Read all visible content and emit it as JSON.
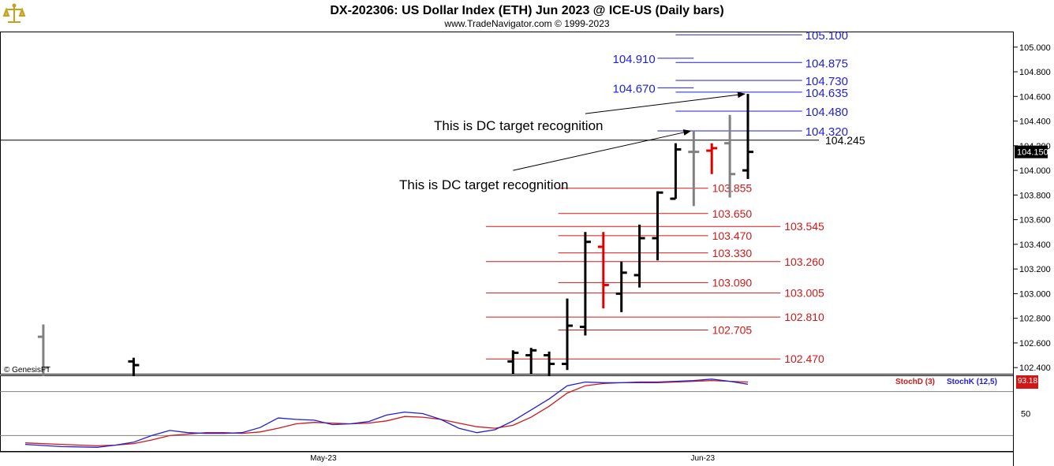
{
  "header": {
    "title": "DX-202306:  US Dollar Index (ETH) Jun 2023 @ ICE-US  (Daily bars)",
    "subtitle": "www.TradeNavigator.com © 1999-2023"
  },
  "watermark": "© GenesisFT",
  "colors": {
    "up": "#000000",
    "down": "#e00000",
    "neutral": "#808080",
    "blue": "#1f1fd6",
    "red": "#d01818"
  },
  "chart_data": {
    "type": "ohlc",
    "ylim": [
      102.35,
      105.12
    ],
    "yticks": [
      "105.000",
      "104.800",
      "104.600",
      "104.400",
      "104.200",
      "104.000",
      "103.800",
      "103.600",
      "103.400",
      "103.200",
      "103.000",
      "102.800",
      "102.600",
      "102.400"
    ],
    "x_labels": [
      {
        "label": "May-23",
        "x": 16.5
      },
      {
        "label": "Jun-23",
        "x": 37.5
      }
    ],
    "last_price": "104.150",
    "bars": [
      {
        "x": 1,
        "o": 102.65,
        "h": 102.75,
        "l": 102.33,
        "c": 102.4,
        "col": "neutral"
      },
      {
        "x": 6,
        "o": 102.45,
        "h": 102.48,
        "l": 102.33,
        "c": 102.42,
        "col": "up"
      },
      {
        "x": 27,
        "o": 102.45,
        "h": 102.54,
        "l": 102.35,
        "c": 102.52,
        "col": "up"
      },
      {
        "x": 28,
        "o": 102.5,
        "h": 102.56,
        "l": 102.35,
        "c": 102.54,
        "col": "up"
      },
      {
        "x": 29,
        "o": 102.5,
        "h": 102.53,
        "l": 102.33,
        "c": 102.43,
        "col": "up"
      },
      {
        "x": 30,
        "o": 102.43,
        "h": 102.96,
        "l": 102.38,
        "c": 102.74,
        "col": "up"
      },
      {
        "x": 31,
        "o": 102.73,
        "h": 103.5,
        "l": 102.66,
        "c": 103.42,
        "col": "up"
      },
      {
        "x": 32,
        "o": 103.38,
        "h": 103.5,
        "l": 102.88,
        "c": 103.07,
        "col": "down"
      },
      {
        "x": 33,
        "o": 103.0,
        "h": 103.26,
        "l": 102.85,
        "c": 103.17,
        "col": "up"
      },
      {
        "x": 34,
        "o": 103.15,
        "h": 103.56,
        "l": 103.05,
        "c": 103.45,
        "col": "up"
      },
      {
        "x": 35,
        "o": 103.45,
        "h": 103.83,
        "l": 103.27,
        "c": 103.82,
        "col": "up"
      },
      {
        "x": 36,
        "o": 103.77,
        "h": 104.22,
        "l": 103.77,
        "c": 104.17,
        "col": "up"
      },
      {
        "x": 37,
        "o": 104.15,
        "h": 104.32,
        "l": 103.71,
        "c": 104.15,
        "col": "neutral"
      },
      {
        "x": 38,
        "o": 104.16,
        "h": 104.22,
        "l": 103.97,
        "c": 104.18,
        "col": "down"
      },
      {
        "x": 39,
        "o": 104.22,
        "h": 104.45,
        "l": 103.78,
        "c": 103.97,
        "col": "neutral"
      },
      {
        "x": 40,
        "o": 104.0,
        "h": 104.62,
        "l": 103.93,
        "c": 104.15,
        "col": "up"
      }
    ],
    "levels_blue": [
      {
        "value": 105.1,
        "label": "105.100",
        "xs": 36,
        "xe": 43
      },
      {
        "value": 104.91,
        "label": "104.910",
        "xs": 35,
        "xe": 37
      },
      {
        "value": 104.875,
        "label": "104.875",
        "xs": 36,
        "xe": 43
      },
      {
        "value": 104.73,
        "label": "104.730",
        "xs": 36,
        "xe": 43
      },
      {
        "value": 104.67,
        "label": "104.670",
        "xs": 35,
        "xe": 37
      },
      {
        "value": 104.635,
        "label": "104.635",
        "xs": 36,
        "xe": 43
      },
      {
        "value": 104.48,
        "label": "104.480",
        "xs": 36,
        "xe": 43
      },
      {
        "value": 104.32,
        "label": "104.320",
        "xs": 35,
        "xe": 43
      }
    ],
    "levels_red": [
      {
        "value": 103.855,
        "label": "103.855",
        "xs": 29.5,
        "xe": 37.8
      },
      {
        "value": 103.65,
        "label": "103.650",
        "xs": 29.5,
        "xe": 37.8
      },
      {
        "value": 103.545,
        "label": "103.545",
        "xs": 25.5,
        "xe": 41.8
      },
      {
        "value": 103.47,
        "label": "103.470",
        "xs": 29.5,
        "xe": 37.8
      },
      {
        "value": 103.33,
        "label": "103.330",
        "xs": 29.5,
        "xe": 37.8
      },
      {
        "value": 103.26,
        "label": "103.260",
        "xs": 25.5,
        "xe": 41.8
      },
      {
        "value": 103.09,
        "label": "103.090",
        "xs": 29.5,
        "xe": 37.8
      },
      {
        "value": 103.005,
        "label": "103.005",
        "xs": 25.5,
        "xe": 41.8
      },
      {
        "value": 102.81,
        "label": "102.810",
        "xs": 25.5,
        "xe": 41.8
      },
      {
        "value": 102.705,
        "label": "102.705",
        "xs": 29.5,
        "xe": 37.8
      },
      {
        "value": 102.47,
        "label": "102.470",
        "xs": 25.5,
        "xe": 41.8
      }
    ],
    "level_black": {
      "value": 104.245,
      "label": "104.245"
    },
    "annotations": [
      {
        "text": "This is DC target recognition",
        "tail_x": 31,
        "tail_y": 104.46,
        "head_x": 40,
        "head_y": 104.62
      },
      {
        "text": "This is DC target recognition",
        "tail_x": 27,
        "tail_y": 104.0,
        "head_x": 37,
        "head_y": 104.32
      }
    ],
    "stochastic": {
      "ylim": [
        0,
        100
      ],
      "ytick": "50",
      "stochD_label": "StochD (3)",
      "stochK_label": "StochK (12,5)",
      "last_value": "93.18",
      "x": [
        0,
        2,
        4,
        5,
        6,
        7,
        8,
        9,
        10,
        11,
        12,
        13,
        14,
        15,
        16,
        17,
        18,
        19,
        20,
        21,
        22,
        23,
        24,
        25,
        26,
        27,
        28,
        29,
        30,
        31,
        32,
        33,
        34,
        35,
        36,
        37,
        38,
        39,
        40
      ],
      "stochD": [
        10,
        8,
        6,
        7,
        9,
        14,
        20,
        22,
        24,
        24,
        23,
        25,
        30,
        36,
        38,
        37,
        36,
        37,
        40,
        46,
        45,
        42,
        37,
        32,
        30,
        34,
        45,
        60,
        78,
        88,
        91,
        92,
        92,
        92,
        93,
        94,
        95,
        94,
        93
      ],
      "stochK": [
        8,
        5,
        4,
        7,
        11,
        20,
        27,
        24,
        23,
        23,
        24,
        31,
        44,
        42,
        41,
        35,
        36,
        39,
        48,
        52,
        50,
        42,
        30,
        24,
        28,
        40,
        55,
        70,
        88,
        93,
        92,
        92,
        93,
        93,
        94,
        95,
        97,
        94,
        90
      ]
    }
  }
}
